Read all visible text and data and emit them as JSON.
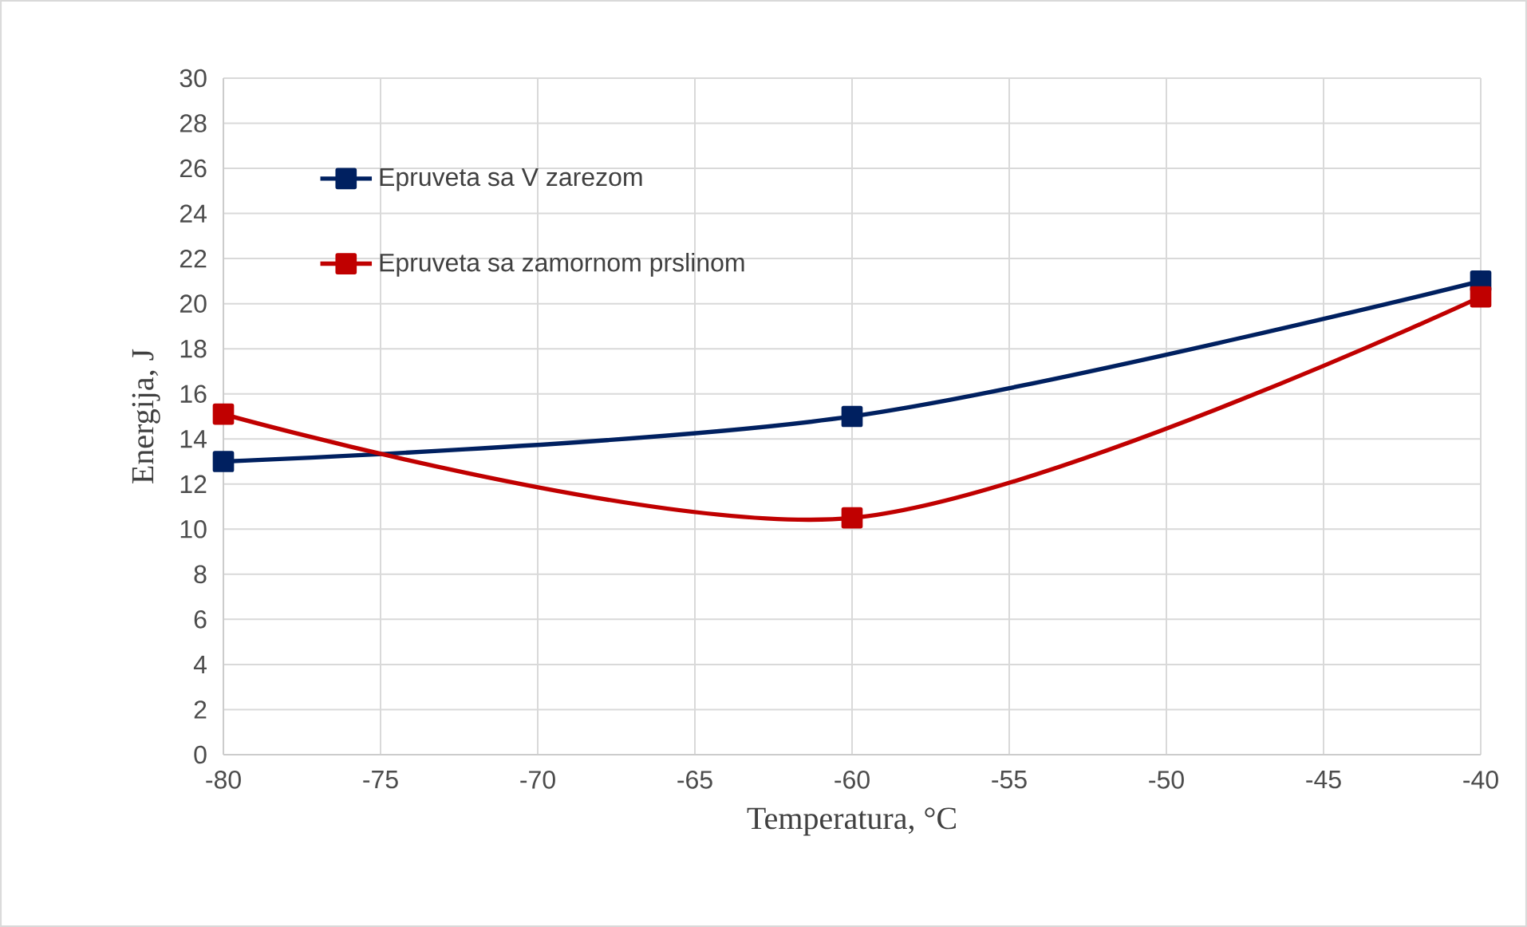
{
  "chart_data": {
    "type": "line",
    "xlabel": "Temperatura, °C",
    "ylabel": "Energija, J",
    "x": [
      -80,
      -60,
      -40
    ],
    "series": [
      {
        "name": "Epruveta sa V zarezom",
        "color": "#002060",
        "values": [
          13.0,
          15.0,
          21.0
        ]
      },
      {
        "name": "Epruveta sa zamornom prslinom",
        "color": "#c00000",
        "values": [
          15.1,
          10.5,
          20.3
        ]
      }
    ],
    "xlim": [
      -80,
      -40
    ],
    "xticks": [
      -80,
      -75,
      -70,
      -65,
      -60,
      -55,
      -50,
      -45,
      -40
    ],
    "ylim": [
      0,
      30
    ],
    "yticks": [
      0,
      2,
      4,
      6,
      8,
      10,
      12,
      14,
      16,
      18,
      20,
      22,
      24,
      26,
      28,
      30
    ],
    "grid": true,
    "legend": "top left",
    "marker": "square",
    "line_style": "solid"
  }
}
